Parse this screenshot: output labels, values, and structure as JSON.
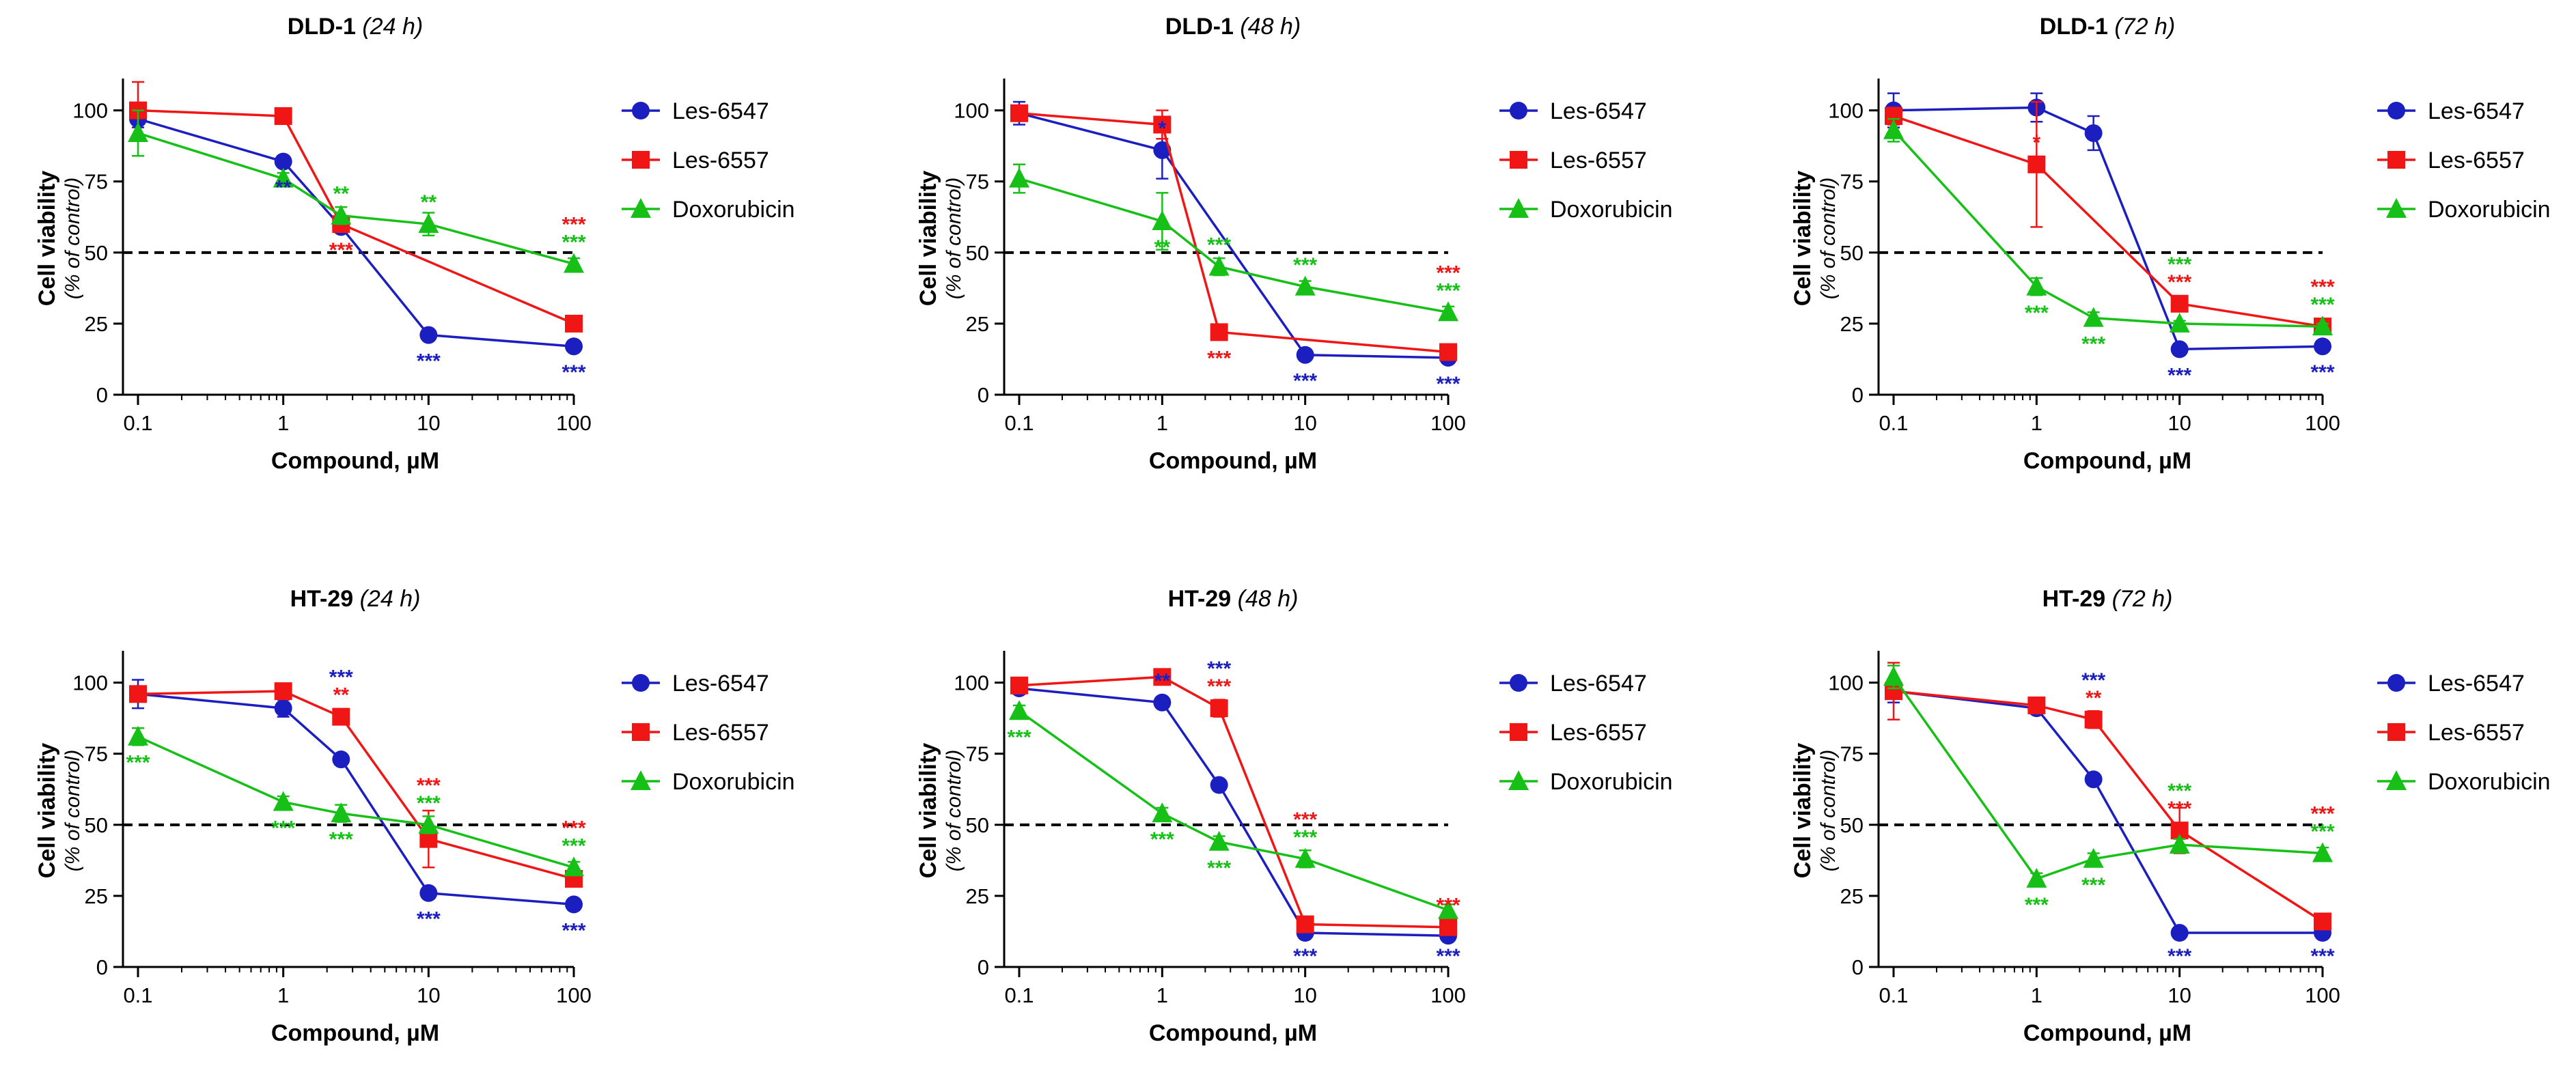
{
  "figure": {
    "y_label_main": "Cell viability",
    "y_label_sub": "(% of control)",
    "x_label": "Compound, µM"
  },
  "series_colors": {
    "Les-6547": "#1c1fc0",
    "Les-6557": "#f01616",
    "Doxorubicin": "#16c016"
  },
  "chart_data": [
    {
      "type": "line",
      "title": "DLD-1",
      "time": "(24 h)",
      "xscale": "log",
      "xlim": [
        0.1,
        100
      ],
      "ylim": [
        0,
        110
      ],
      "x": [
        0.1,
        1,
        2.5,
        10,
        100
      ],
      "xticks": [
        "0.1",
        "1",
        "10",
        "100"
      ],
      "yticks": [
        "0",
        "25",
        "50",
        "75",
        "100"
      ],
      "reference_line": 50,
      "legend": [
        "Les-6547",
        "Les-6557",
        "Doxorubicin"
      ],
      "series": [
        {
          "name": "Les-6547",
          "marker": "circle",
          "values": [
            97,
            82,
            59,
            21,
            17
          ],
          "errors": [
            3,
            2,
            2,
            1,
            1
          ],
          "significance": [
            "",
            "**",
            "",
            "***",
            "***"
          ]
        },
        {
          "name": "Les-6557",
          "marker": "square",
          "values": [
            100,
            98,
            60,
            null,
            25
          ],
          "errors": [
            10,
            1,
            2,
            0,
            2
          ],
          "significance": [
            "",
            "",
            "***",
            "",
            "***"
          ]
        },
        {
          "name": "Doxorubicin",
          "marker": "triangle",
          "values": [
            92,
            76,
            63,
            60,
            46
          ],
          "errors": [
            8,
            2,
            3,
            4,
            2
          ],
          "significance": [
            "",
            "",
            "**",
            "**",
            "***"
          ]
        }
      ]
    },
    {
      "type": "line",
      "title": "DLD-1",
      "time": "(48 h)",
      "xscale": "log",
      "xlim": [
        0.1,
        100
      ],
      "ylim": [
        0,
        110
      ],
      "x": [
        0.1,
        1,
        2.5,
        10,
        100
      ],
      "xticks": [
        "0.1",
        "1",
        "10",
        "100"
      ],
      "yticks": [
        "0",
        "25",
        "50",
        "75",
        "100"
      ],
      "reference_line": 50,
      "legend": [
        "Les-6547",
        "Les-6557",
        "Doxorubicin"
      ],
      "series": [
        {
          "name": "Les-6547",
          "marker": "circle",
          "values": [
            99,
            86,
            null,
            14,
            13
          ],
          "errors": [
            4,
            10,
            0,
            1,
            1
          ],
          "significance": [
            "",
            "*",
            "",
            "***",
            "***"
          ]
        },
        {
          "name": "Les-6557",
          "marker": "square",
          "values": [
            99,
            95,
            22,
            null,
            15
          ],
          "errors": [
            2,
            5,
            2,
            0,
            1
          ],
          "significance": [
            "",
            "",
            "***",
            "",
            "***"
          ]
        },
        {
          "name": "Doxorubicin",
          "marker": "triangle",
          "values": [
            76,
            61,
            45,
            38,
            29
          ],
          "errors": [
            5,
            10,
            3,
            2,
            2
          ],
          "significance": [
            "",
            "**",
            "***",
            "***",
            "***"
          ]
        }
      ]
    },
    {
      "type": "line",
      "title": "DLD-1",
      "time": "(72 h)",
      "xscale": "log",
      "xlim": [
        0.1,
        100
      ],
      "ylim": [
        0,
        110
      ],
      "x": [
        0.1,
        1,
        2.5,
        10,
        100
      ],
      "xticks": [
        "0.1",
        "1",
        "10",
        "100"
      ],
      "yticks": [
        "0",
        "25",
        "50",
        "75",
        "100"
      ],
      "reference_line": 50,
      "legend": [
        "Les-6547",
        "Les-6557",
        "Doxorubicin"
      ],
      "series": [
        {
          "name": "Les-6547",
          "marker": "circle",
          "values": [
            100,
            101,
            92,
            16,
            17
          ],
          "errors": [
            6,
            5,
            6,
            1,
            1
          ],
          "significance": [
            "",
            "",
            "",
            "***",
            "***"
          ]
        },
        {
          "name": "Les-6557",
          "marker": "square",
          "values": [
            98,
            81,
            null,
            32,
            24
          ],
          "errors": [
            3,
            22,
            0,
            2,
            1
          ],
          "significance": [
            "",
            "*",
            "",
            "***",
            "***"
          ]
        },
        {
          "name": "Doxorubicin",
          "marker": "triangle",
          "values": [
            93,
            38,
            27,
            25,
            24
          ],
          "errors": [
            4,
            3,
            2,
            1,
            1
          ],
          "significance": [
            "",
            "***",
            "***",
            "***",
            "***"
          ]
        }
      ]
    },
    {
      "type": "line",
      "title": "HT-29",
      "time": "(24 h)",
      "xscale": "log",
      "xlim": [
        0.1,
        100
      ],
      "ylim": [
        0,
        110
      ],
      "x": [
        0.1,
        1,
        2.5,
        10,
        100
      ],
      "xticks": [
        "0.1",
        "1",
        "10",
        "100"
      ],
      "yticks": [
        "0",
        "25",
        "50",
        "75",
        "100"
      ],
      "reference_line": 50,
      "legend": [
        "Les-6547",
        "Les-6557",
        "Doxorubicin"
      ],
      "series": [
        {
          "name": "Les-6547",
          "marker": "circle",
          "values": [
            96,
            91,
            73,
            26,
            22
          ],
          "errors": [
            5,
            3,
            2,
            2,
            1
          ],
          "significance": [
            "",
            "",
            "***",
            "***",
            "***"
          ]
        },
        {
          "name": "Les-6557",
          "marker": "square",
          "values": [
            96,
            97,
            88,
            45,
            31
          ],
          "errors": [
            2,
            1,
            2,
            10,
            2
          ],
          "significance": [
            "",
            "",
            "**",
            "***",
            "***"
          ]
        },
        {
          "name": "Doxorubicin",
          "marker": "triangle",
          "values": [
            81,
            58,
            54,
            50,
            35
          ],
          "errors": [
            3,
            2,
            3,
            3,
            2
          ],
          "significance": [
            "***",
            "***",
            "***",
            "***",
            "***"
          ]
        }
      ]
    },
    {
      "type": "line",
      "title": "HT-29",
      "time": "(48 h)",
      "xscale": "log",
      "xlim": [
        0.1,
        100
      ],
      "ylim": [
        0,
        110
      ],
      "x": [
        0.1,
        1,
        2.5,
        10,
        100
      ],
      "xticks": [
        "0.1",
        "1",
        "10",
        "100"
      ],
      "yticks": [
        "0",
        "25",
        "50",
        "75",
        "100"
      ],
      "reference_line": 50,
      "legend": [
        "Les-6547",
        "Les-6557",
        "Doxorubicin"
      ],
      "series": [
        {
          "name": "Les-6547",
          "marker": "circle",
          "values": [
            98,
            93,
            64,
            12,
            11
          ],
          "errors": [
            2,
            2,
            2,
            1,
            1
          ],
          "significance": [
            "",
            "**",
            "***",
            "***",
            "***"
          ]
        },
        {
          "name": "Les-6557",
          "marker": "square",
          "values": [
            99,
            102,
            91,
            15,
            14
          ],
          "errors": [
            2,
            1,
            3,
            1,
            1
          ],
          "significance": [
            "",
            "",
            "***",
            "***",
            "***"
          ]
        },
        {
          "name": "Doxorubicin",
          "marker": "triangle",
          "values": [
            90,
            54,
            44,
            38,
            20
          ],
          "errors": [
            2,
            2,
            2,
            3,
            2
          ],
          "significance": [
            "***",
            "***",
            "***",
            "***",
            ""
          ]
        }
      ]
    },
    {
      "type": "line",
      "title": "HT-29",
      "time": "(72 h)",
      "xscale": "log",
      "xlim": [
        0.1,
        100
      ],
      "ylim": [
        0,
        110
      ],
      "x": [
        0.1,
        1,
        2.5,
        10,
        100
      ],
      "xticks": [
        "0.1",
        "1",
        "10",
        "100"
      ],
      "yticks": [
        "0",
        "25",
        "50",
        "75",
        "100"
      ],
      "reference_line": 50,
      "legend": [
        "Les-6547",
        "Les-6557",
        "Doxorubicin"
      ],
      "series": [
        {
          "name": "Les-6547",
          "marker": "circle",
          "values": [
            97,
            91,
            66,
            12,
            12
          ],
          "errors": [
            4,
            2,
            2,
            1,
            1
          ],
          "significance": [
            "",
            "",
            "***",
            "***",
            "***"
          ]
        },
        {
          "name": "Les-6557",
          "marker": "square",
          "values": [
            97,
            92,
            87,
            48,
            16
          ],
          "errors": [
            10,
            1,
            3,
            8,
            1
          ],
          "significance": [
            "",
            "",
            "**",
            "***",
            "***"
          ]
        },
        {
          "name": "Doxorubicin",
          "marker": "triangle",
          "values": [
            102,
            31,
            38,
            43,
            40
          ],
          "errors": [
            4,
            2,
            2,
            2,
            2
          ],
          "significance": [
            "",
            "***",
            "***",
            "***",
            "***"
          ]
        }
      ]
    }
  ]
}
